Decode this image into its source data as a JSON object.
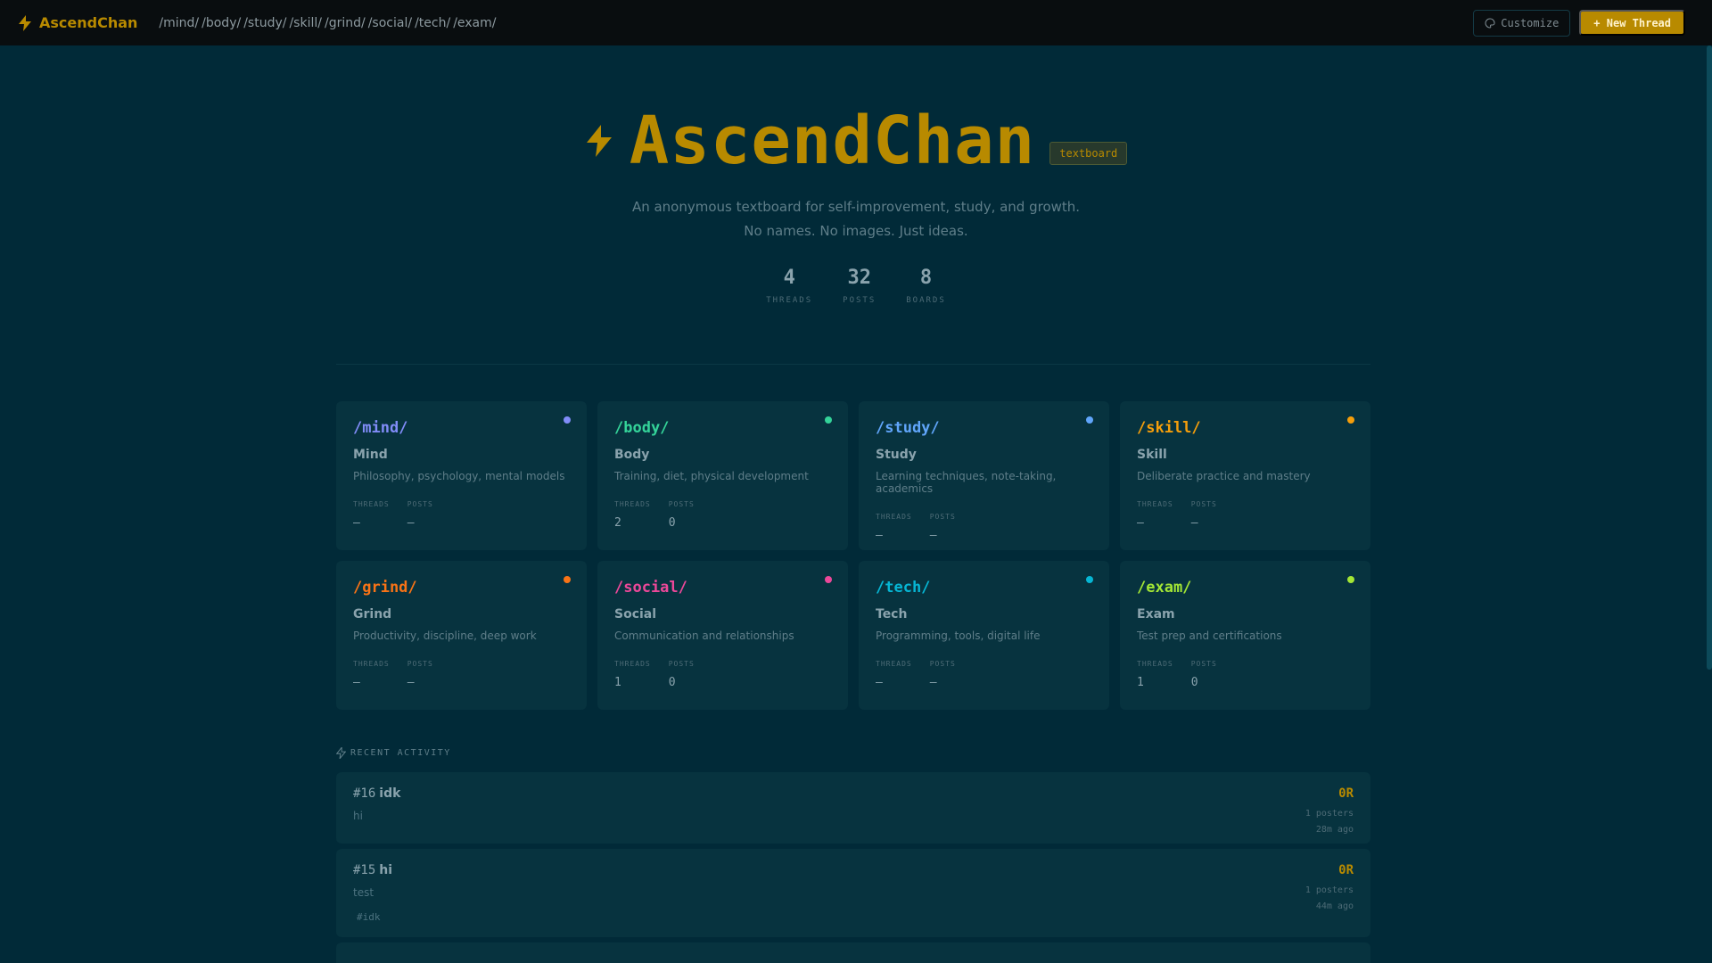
{
  "topbar": {
    "logo": "AscendChan",
    "nav": [
      "/mind/",
      "/body/",
      "/study/",
      "/skill/",
      "/grind/",
      "/social/",
      "/tech/",
      "/exam/"
    ],
    "customize_label": "Customize",
    "new_thread_label": "+ New Thread"
  },
  "hero": {
    "title": "AscendChan",
    "tag": "textboard",
    "subtitle_1": "An anonymous textboard for self-improvement, study, and growth.",
    "subtitle_2": "No names. No images. Just ideas.",
    "stats": [
      {
        "value": "4",
        "label": "THREADS"
      },
      {
        "value": "32",
        "label": "POSTS"
      },
      {
        "value": "8",
        "label": "BOARDS"
      }
    ]
  },
  "colors": {
    "accent": "#b88a00",
    "background": "#012a38",
    "card": "#07333f"
  },
  "boards": [
    {
      "slug": "/mind/",
      "name": "Mind",
      "desc": "Philosophy, psychology, mental models",
      "threads": "—",
      "posts": "—",
      "color": "#818cf8"
    },
    {
      "slug": "/body/",
      "name": "Body",
      "desc": "Training, diet, physical development",
      "threads": "2",
      "posts": "0",
      "color": "#34d399"
    },
    {
      "slug": "/study/",
      "name": "Study",
      "desc": "Learning techniques, note-taking, academics",
      "threads": "—",
      "posts": "—",
      "color": "#60a5fa"
    },
    {
      "slug": "/skill/",
      "name": "Skill",
      "desc": "Deliberate practice and mastery",
      "threads": "—",
      "posts": "—",
      "color": "#f59e0b"
    },
    {
      "slug": "/grind/",
      "name": "Grind",
      "desc": "Productivity, discipline, deep work",
      "threads": "—",
      "posts": "—",
      "color": "#f97316"
    },
    {
      "slug": "/social/",
      "name": "Social",
      "desc": "Communication and relationships",
      "threads": "1",
      "posts": "0",
      "color": "#ec4899"
    },
    {
      "slug": "/tech/",
      "name": "Tech",
      "desc": "Programming, tools, digital life",
      "threads": "—",
      "posts": "—",
      "color": "#06b6d4"
    },
    {
      "slug": "/exam/",
      "name": "Exam",
      "desc": "Test prep and certifications",
      "threads": "1",
      "posts": "0",
      "color": "#a3e635"
    }
  ],
  "board_labels": {
    "threads": "THREADS",
    "posts": "POSTS"
  },
  "recent": {
    "title": "RECENT ACTIVITY",
    "items": [
      {
        "num": "#16",
        "title": "idk",
        "body": "hi",
        "tag": "",
        "replies": "0R",
        "posters": "1 posters",
        "time": "28m ago"
      },
      {
        "num": "#15",
        "title": "hi",
        "body": "test",
        "tag": "#idk",
        "replies": "0R",
        "posters": "1 posters",
        "time": "44m ago"
      }
    ]
  }
}
